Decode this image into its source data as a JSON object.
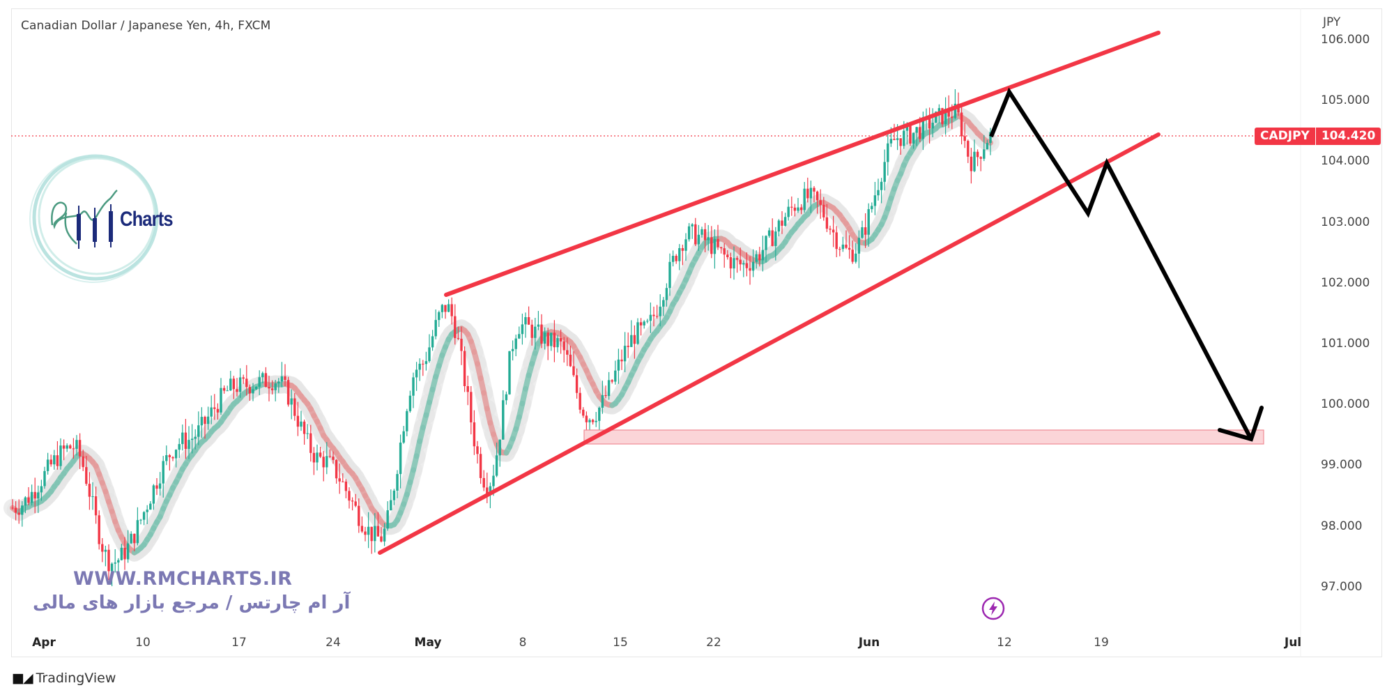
{
  "chart_title": "Canadian Dollar / Japanese Yen, 4h, FXCM",
  "currency_label": "JPY",
  "price_tag": {
    "symbol": "CADJPY",
    "value": "104.420",
    "color": "#f23645"
  },
  "price_axis": [
    "106.000",
    "105.000",
    "104.000",
    "103.000",
    "102.000",
    "101.000",
    "100.000",
    "99.000",
    "98.000",
    "97.000"
  ],
  "time_axis": [
    {
      "label": "Apr",
      "major": true
    },
    {
      "label": "10",
      "major": false
    },
    {
      "label": "17",
      "major": false
    },
    {
      "label": "24",
      "major": false
    },
    {
      "label": "May",
      "major": true
    },
    {
      "label": "8",
      "major": false
    },
    {
      "label": "15",
      "major": false
    },
    {
      "label": "22",
      "major": false
    },
    {
      "label": "Jun",
      "major": true
    },
    {
      "label": "12",
      "major": false
    },
    {
      "label": "19",
      "major": false
    },
    {
      "label": "Jul",
      "major": true
    }
  ],
  "watermark": {
    "url": "WWW.RMCHARTS.IR",
    "persian": "آر ام چارتس / مرجع بازار های مالی",
    "logo_text": "Charts"
  },
  "footer": {
    "brand": "TradingView"
  },
  "colors": {
    "up": "#22ab94",
    "down": "#f23645",
    "trendline": "#f23645",
    "projection": "#000000",
    "zone_fill": "#fbd5d8",
    "ma_up": "#7fc4b3",
    "ma_down": "#e49b9b",
    "ma_halo": "#e6e6e6"
  },
  "chart_data": {
    "type": "candlestick",
    "title": "Canadian Dollar / Japanese Yen, 4h, FXCM",
    "symbol": "CADJPY",
    "timeframe": "4h",
    "exchange": "FXCM",
    "ylabel": "JPY",
    "ylim": [
      96.2,
      106.2
    ],
    "yticks": [
      97,
      98,
      99,
      100,
      101,
      102,
      103,
      104,
      105,
      106
    ],
    "xticks": [
      "Apr",
      "10",
      "17",
      "24",
      "May",
      "8",
      "15",
      "22",
      "Jun",
      "12",
      "19",
      "Jul"
    ],
    "last_price": 104.42,
    "price_path": [
      {
        "date": "Mar 31",
        "price": 98.3
      },
      {
        "date": "Apr 5",
        "price": 99.3
      },
      {
        "date": "Apr 7",
        "price": 97.4
      },
      {
        "date": "Apr 13",
        "price": 99.4
      },
      {
        "date": "Apr 17",
        "price": 100.3
      },
      {
        "date": "Apr 19",
        "price": 100.4
      },
      {
        "date": "Apr 24",
        "price": 99.1
      },
      {
        "date": "Apr 28",
        "price": 97.8
      },
      {
        "date": "May 1",
        "price": 100.6
      },
      {
        "date": "May 2",
        "price": 101.6
      },
      {
        "date": "May 5",
        "price": 98.7
      },
      {
        "date": "May 9",
        "price": 101.3
      },
      {
        "date": "May 11",
        "price": 101.0
      },
      {
        "date": "May 12",
        "price": 99.8
      },
      {
        "date": "May 17",
        "price": 101.2
      },
      {
        "date": "May 19",
        "price": 102.8
      },
      {
        "date": "May 22",
        "price": 102.3
      },
      {
        "date": "May 26",
        "price": 103.4
      },
      {
        "date": "May 30",
        "price": 102.5
      },
      {
        "date": "Jun 5",
        "price": 104.4
      },
      {
        "date": "Jun 8",
        "price": 104.8
      },
      {
        "date": "Jun 9",
        "price": 104.0
      },
      {
        "date": "Jun 10",
        "price": 104.42
      }
    ],
    "annotations": [
      {
        "type": "trendline",
        "name": "upper channel",
        "from": {
          "date": "May 2",
          "price": 101.8
        },
        "to": {
          "date": "Jun 23",
          "price": 106.1
        }
      },
      {
        "type": "trendline",
        "name": "lower channel",
        "from": {
          "date": "Apr 27",
          "price": 97.55
        },
        "to": {
          "date": "Jun 23",
          "price": 104.4
        }
      },
      {
        "type": "zone",
        "name": "target support zone",
        "price_top": 99.6,
        "price_bottom": 99.35,
        "from": "May 12",
        "to": "Jun 28"
      },
      {
        "type": "projection",
        "name": "bearish path",
        "points": [
          {
            "date": "Jun 10",
            "price": 104.4
          },
          {
            "date": "Jun 12",
            "price": 105.15
          },
          {
            "date": "Jun 18",
            "price": 103.15
          },
          {
            "date": "Jun 20",
            "price": 104.0
          },
          {
            "date": "Jun 28",
            "price": 99.4
          }
        ]
      }
    ]
  }
}
